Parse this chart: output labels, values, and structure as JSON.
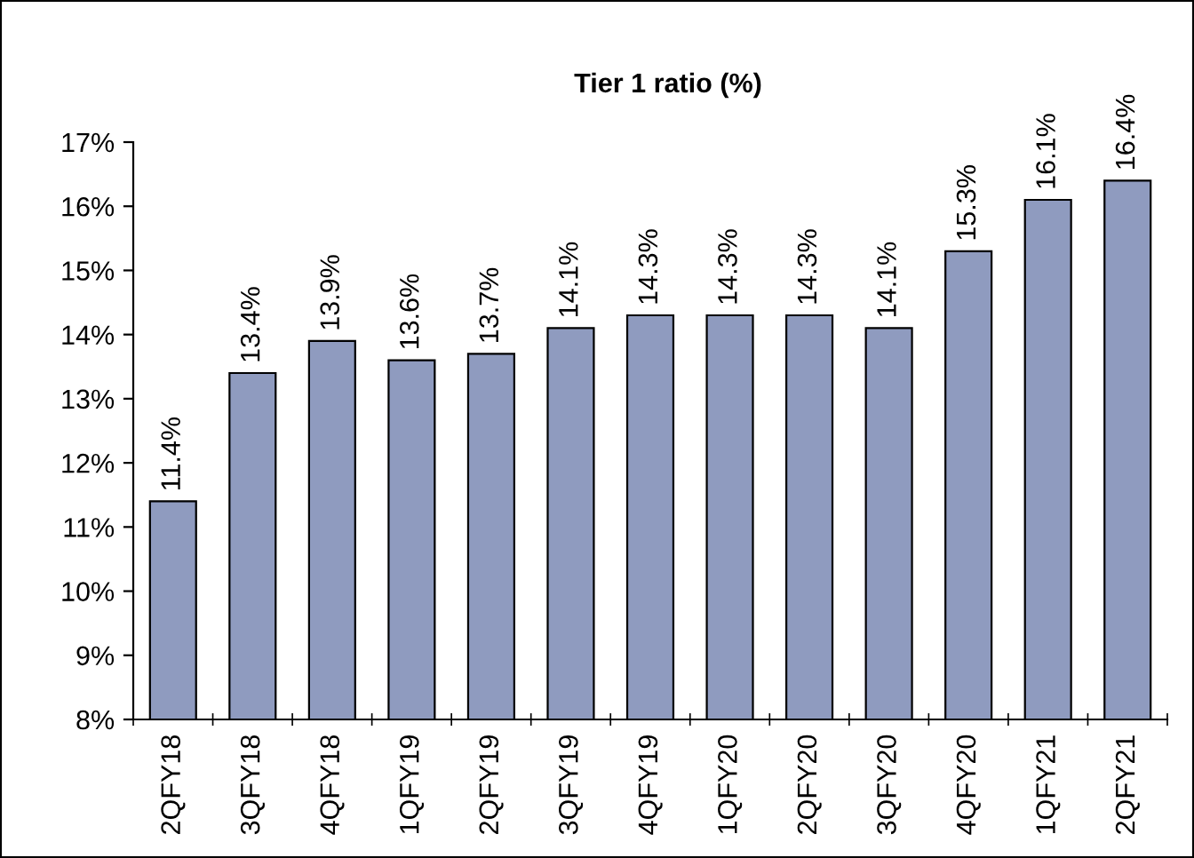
{
  "chart_data": {
    "type": "bar",
    "title": "Tier 1 ratio (%)",
    "categories": [
      "2QFY18",
      "3QFY18",
      "4QFY18",
      "1QFY19",
      "2QFY19",
      "3QFY19",
      "4QFY19",
      "1QFY20",
      "2QFY20",
      "3QFY20",
      "4QFY20",
      "1QFY21",
      "2QFY21"
    ],
    "values": [
      11.4,
      13.4,
      13.9,
      13.6,
      13.7,
      14.1,
      14.3,
      14.3,
      14.3,
      14.1,
      15.3,
      16.1,
      16.4
    ],
    "value_labels": [
      "11.4%",
      "13.4%",
      "13.9%",
      "13.6%",
      "13.7%",
      "14.1%",
      "14.3%",
      "14.3%",
      "14.3%",
      "14.1%",
      "15.3%",
      "16.1%",
      "16.4%"
    ],
    "color": "#8f9bbf",
    "ylim": [
      8,
      17
    ],
    "yticks": [
      {
        "value": 8,
        "label": "8%"
      },
      {
        "value": 9,
        "label": "9%"
      },
      {
        "value": 10,
        "label": "10%"
      },
      {
        "value": 11,
        "label": "11%"
      },
      {
        "value": 12,
        "label": "12%"
      },
      {
        "value": 13,
        "label": "13%"
      },
      {
        "value": 14,
        "label": "14%"
      },
      {
        "value": 15,
        "label": "15%"
      },
      {
        "value": 16,
        "label": "16%"
      },
      {
        "value": 17,
        "label": "17%"
      }
    ],
    "grid": false
  }
}
